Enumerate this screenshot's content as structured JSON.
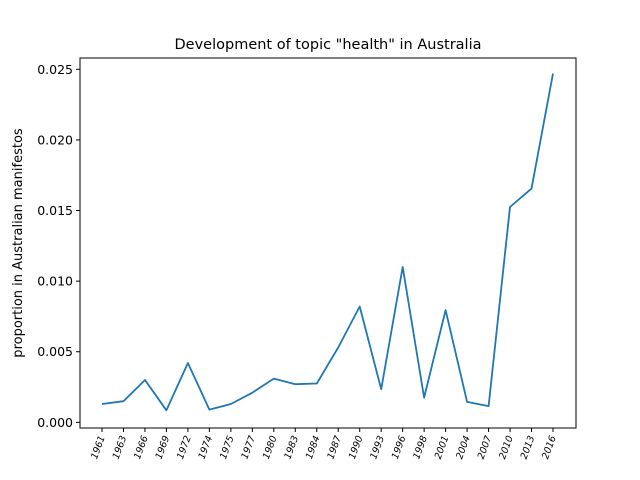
{
  "chart_data": {
    "type": "line",
    "title": "Development of topic \"health\" in Australia",
    "xlabel": "",
    "ylabel": "proportion in Australian manifestos",
    "ylim": [
      -0.0004,
      0.0258
    ],
    "y_ticks": [
      "0.000",
      "0.005",
      "0.010",
      "0.015",
      "0.020",
      "0.025"
    ],
    "y_tick_values": [
      0,
      0.005,
      0.01,
      0.015,
      0.02,
      0.025
    ],
    "categories": [
      "1961",
      "1963",
      "1966",
      "1969",
      "1972",
      "1974",
      "1975",
      "1977",
      "1980",
      "1983",
      "1984",
      "1987",
      "1990",
      "1993",
      "1996",
      "1998",
      "2001",
      "2004",
      "2007",
      "2010",
      "2013",
      "2016"
    ],
    "series": [
      {
        "color": "#1f77b4",
        "values": [
          0.0013,
          0.0015,
          0.003,
          0.00085,
          0.0042,
          0.0009,
          0.0013,
          0.0021,
          0.0031,
          0.0027,
          0.00275,
          0.0053,
          0.0082,
          0.00235,
          0.011,
          0.00175,
          0.00795,
          0.00145,
          0.00115,
          0.01525,
          0.01655,
          0.0247
        ]
      }
    ],
    "grid": false,
    "legend": "none"
  }
}
